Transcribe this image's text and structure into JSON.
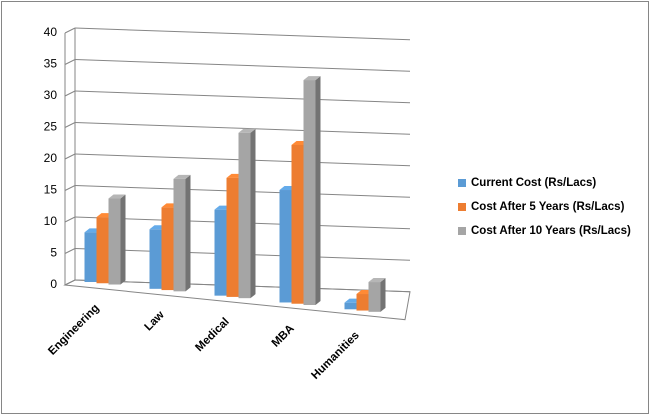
{
  "chart_data": {
    "type": "bar3d",
    "categories": [
      "Engineering",
      "Law",
      "Medical",
      "MBA",
      "Humanities"
    ],
    "series": [
      {
        "name": "Current Cost (Rs/Lacs)",
        "color": "#5b9bd5",
        "values": [
          7.5,
          9,
          13,
          17,
          1
        ]
      },
      {
        "name": "Cost After 5 Years  (Rs/Lacs)",
        "color": "#ed7d31",
        "values": [
          10,
          12.5,
          18,
          24,
          2.5
        ]
      },
      {
        "name": "Cost After 10 Years  (Rs/Lacs)",
        "color": "#a5a5a5",
        "values": [
          13,
          17,
          25,
          34,
          4.5
        ]
      }
    ],
    "ylim": [
      0,
      40
    ],
    "yticks": [
      0,
      5,
      10,
      15,
      20,
      25,
      30,
      35,
      40
    ],
    "grid": true,
    "legend": "right"
  }
}
